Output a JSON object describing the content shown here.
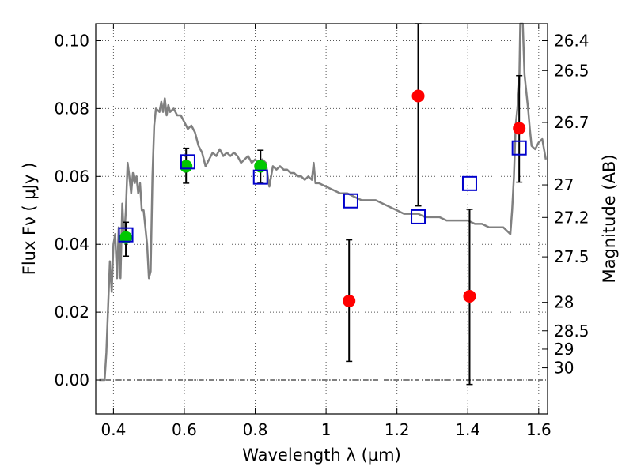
{
  "chart_data": {
    "type": "scatter",
    "xlabel": "Wavelength  λ (μm)",
    "ylabel": "Flux  Fν  ( μJy )",
    "y2label": "Magnitude (AB)",
    "xlim": [
      0.35,
      1.625
    ],
    "ylim": [
      -0.01,
      0.105
    ],
    "grid": true,
    "x_ticks": [
      {
        "value": 0.4,
        "label": "0.4"
      },
      {
        "value": 0.6,
        "label": "0.6"
      },
      {
        "value": 0.8,
        "label": "0.8"
      },
      {
        "value": 1.0,
        "label": "1"
      },
      {
        "value": 1.2,
        "label": "1.2"
      },
      {
        "value": 1.4,
        "label": "1.4"
      },
      {
        "value": 1.6,
        "label": "1.6"
      }
    ],
    "y_ticks": [
      {
        "value": 0.0,
        "label": "0.00"
      },
      {
        "value": 0.02,
        "label": "0.02"
      },
      {
        "value": 0.04,
        "label": "0.04"
      },
      {
        "value": 0.06,
        "label": "0.06"
      },
      {
        "value": 0.08,
        "label": "0.08"
      },
      {
        "value": 0.1,
        "label": "0.10"
      }
    ],
    "y2_ticks": [
      {
        "flux": 0.1,
        "label": "26.4"
      },
      {
        "flux": 0.0912,
        "label": "26.5"
      },
      {
        "flux": 0.0759,
        "label": "26.7"
      },
      {
        "flux": 0.0575,
        "label": "27"
      },
      {
        "flux": 0.0479,
        "label": "27.2"
      },
      {
        "flux": 0.0363,
        "label": "27.5"
      },
      {
        "flux": 0.0229,
        "label": "28"
      },
      {
        "flux": 0.0145,
        "label": "28.5"
      },
      {
        "flux": 0.0091,
        "label": "29"
      },
      {
        "flux": 0.0036,
        "label": "30"
      }
    ],
    "model_sed": {
      "color": "#808080",
      "points": [
        [
          0.36,
          0.0
        ],
        [
          0.375,
          0.0
        ],
        [
          0.38,
          0.008
        ],
        [
          0.385,
          0.022
        ],
        [
          0.39,
          0.035
        ],
        [
          0.395,
          0.026
        ],
        [
          0.4,
          0.04
        ],
        [
          0.405,
          0.043
        ],
        [
          0.41,
          0.03
        ],
        [
          0.415,
          0.045
        ],
        [
          0.42,
          0.03
        ],
        [
          0.425,
          0.052
        ],
        [
          0.43,
          0.041
        ],
        [
          0.435,
          0.05
        ],
        [
          0.44,
          0.064
        ],
        [
          0.445,
          0.06
        ],
        [
          0.45,
          0.055
        ],
        [
          0.455,
          0.061
        ],
        [
          0.46,
          0.058
        ],
        [
          0.465,
          0.06
        ],
        [
          0.47,
          0.055
        ],
        [
          0.475,
          0.058
        ],
        [
          0.48,
          0.05
        ],
        [
          0.485,
          0.05
        ],
        [
          0.49,
          0.045
        ],
        [
          0.495,
          0.04
        ],
        [
          0.5,
          0.03
        ],
        [
          0.505,
          0.032
        ],
        [
          0.51,
          0.06
        ],
        [
          0.515,
          0.075
        ],
        [
          0.52,
          0.08
        ],
        [
          0.53,
          0.079
        ],
        [
          0.535,
          0.082
        ],
        [
          0.54,
          0.079
        ],
        [
          0.545,
          0.083
        ],
        [
          0.55,
          0.078
        ],
        [
          0.555,
          0.081
        ],
        [
          0.56,
          0.079
        ],
        [
          0.57,
          0.08
        ],
        [
          0.58,
          0.078
        ],
        [
          0.59,
          0.078
        ],
        [
          0.6,
          0.076
        ],
        [
          0.61,
          0.074
        ],
        [
          0.62,
          0.075
        ],
        [
          0.63,
          0.073
        ],
        [
          0.64,
          0.069
        ],
        [
          0.65,
          0.067
        ],
        [
          0.66,
          0.063
        ],
        [
          0.67,
          0.065
        ],
        [
          0.68,
          0.067
        ],
        [
          0.69,
          0.066
        ],
        [
          0.7,
          0.068
        ],
        [
          0.71,
          0.066
        ],
        [
          0.72,
          0.067
        ],
        [
          0.73,
          0.066
        ],
        [
          0.74,
          0.067
        ],
        [
          0.75,
          0.066
        ],
        [
          0.76,
          0.064
        ],
        [
          0.77,
          0.065
        ],
        [
          0.78,
          0.066
        ],
        [
          0.79,
          0.064
        ],
        [
          0.8,
          0.065
        ],
        [
          0.81,
          0.064
        ],
        [
          0.82,
          0.065
        ],
        [
          0.83,
          0.064
        ],
        [
          0.84,
          0.057
        ],
        [
          0.85,
          0.063
        ],
        [
          0.86,
          0.062
        ],
        [
          0.87,
          0.063
        ],
        [
          0.88,
          0.062
        ],
        [
          0.89,
          0.062
        ],
        [
          0.9,
          0.061
        ],
        [
          0.91,
          0.061
        ],
        [
          0.92,
          0.06
        ],
        [
          0.93,
          0.06
        ],
        [
          0.94,
          0.059
        ],
        [
          0.95,
          0.06
        ],
        [
          0.96,
          0.059
        ],
        [
          0.965,
          0.064
        ],
        [
          0.97,
          0.058
        ],
        [
          0.98,
          0.058
        ],
        [
          1.0,
          0.057
        ],
        [
          1.02,
          0.056
        ],
        [
          1.04,
          0.055
        ],
        [
          1.06,
          0.055
        ],
        [
          1.08,
          0.054
        ],
        [
          1.1,
          0.053
        ],
        [
          1.12,
          0.053
        ],
        [
          1.14,
          0.053
        ],
        [
          1.16,
          0.052
        ],
        [
          1.18,
          0.051
        ],
        [
          1.2,
          0.05
        ],
        [
          1.22,
          0.049
        ],
        [
          1.24,
          0.049
        ],
        [
          1.26,
          0.049
        ],
        [
          1.28,
          0.048
        ],
        [
          1.3,
          0.048
        ],
        [
          1.32,
          0.048
        ],
        [
          1.34,
          0.047
        ],
        [
          1.36,
          0.047
        ],
        [
          1.38,
          0.047
        ],
        [
          1.4,
          0.047
        ],
        [
          1.42,
          0.046
        ],
        [
          1.44,
          0.046
        ],
        [
          1.46,
          0.045
        ],
        [
          1.48,
          0.045
        ],
        [
          1.5,
          0.045
        ],
        [
          1.51,
          0.044
        ],
        [
          1.52,
          0.043
        ],
        [
          1.525,
          0.05
        ],
        [
          1.53,
          0.06
        ],
        [
          1.535,
          0.075
        ],
        [
          1.54,
          0.08
        ],
        [
          1.545,
          0.087
        ],
        [
          1.548,
          0.105
        ],
        [
          1.555,
          0.105
        ],
        [
          1.56,
          0.09
        ],
        [
          1.565,
          0.085
        ],
        [
          1.57,
          0.08
        ],
        [
          1.575,
          0.074
        ],
        [
          1.58,
          0.069
        ],
        [
          1.59,
          0.068
        ],
        [
          1.6,
          0.07
        ],
        [
          1.61,
          0.071
        ],
        [
          1.62,
          0.065
        ]
      ]
    },
    "series": [
      {
        "marker": "circle",
        "color": "#00c800",
        "points": [
          {
            "x": 0.435,
            "y": 0.042,
            "err_low": 0.0365,
            "err_high": 0.0465
          },
          {
            "x": 0.605,
            "y": 0.063,
            "err_low": 0.058,
            "err_high": 0.0683
          },
          {
            "x": 0.815,
            "y": 0.063,
            "err_low": 0.058,
            "err_high": 0.0677
          }
        ]
      },
      {
        "marker": "circle",
        "color": "#ff0000",
        "points": [
          {
            "x": 1.065,
            "y": 0.0233,
            "err_low": 0.0055,
            "err_high": 0.0413
          },
          {
            "x": 1.26,
            "y": 0.0837,
            "err_low": 0.0513,
            "err_high": 0.105
          },
          {
            "x": 1.405,
            "y": 0.0247,
            "err_low": -0.0013,
            "err_high": 0.0503
          },
          {
            "x": 1.545,
            "y": 0.0742,
            "err_low": 0.0583,
            "err_high": 0.0897
          }
        ]
      },
      {
        "marker": "open-square",
        "color": "#0000cc",
        "points": [
          {
            "x": 0.435,
            "y": 0.0428
          },
          {
            "x": 0.61,
            "y": 0.0643
          },
          {
            "x": 0.815,
            "y": 0.0598
          },
          {
            "x": 1.07,
            "y": 0.0528
          },
          {
            "x": 1.26,
            "y": 0.0481
          },
          {
            "x": 1.405,
            "y": 0.0579
          },
          {
            "x": 1.545,
            "y": 0.0684
          }
        ]
      }
    ]
  }
}
